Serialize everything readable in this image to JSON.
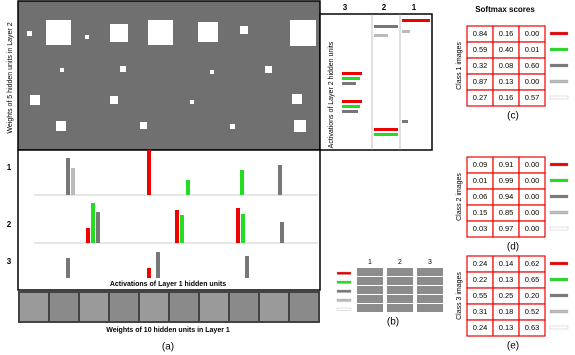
{
  "panel_a": {
    "layer2_weights_label": "Weights of 5 hidden units in Layer 2",
    "layer2_columns": [
      "3",
      "2",
      "1"
    ],
    "layer2_activations_label": "Activations of  Layer 2 hidden  units",
    "rows": [
      "1",
      "2",
      "3"
    ],
    "layer1_activations_label": "Activations of  Layer 1 hidden  units",
    "layer1_weights_label": "Weights of 10 hidden units in Layer 1",
    "caption": "(a)"
  },
  "panel_b": {
    "columns": [
      "1",
      "2",
      "3"
    ],
    "caption": "(b)"
  },
  "softmax_title": "Softmax  scores",
  "tables": [
    {
      "label": "Class  1 images",
      "caption": "(c)",
      "rows": [
        [
          "0.84",
          "0.16",
          "0.00"
        ],
        [
          "0.59",
          "0.40",
          "0.01"
        ],
        [
          "0.32",
          "0.08",
          "0.60"
        ],
        [
          "0.87",
          "0.13",
          "0.00"
        ],
        [
          "0.27",
          "0.16",
          "0.57"
        ]
      ]
    },
    {
      "label": "Class  2 images",
      "caption": "(d)",
      "rows": [
        [
          "0.09",
          "0.91",
          "0.00"
        ],
        [
          "0.01",
          "0.99",
          "0.00"
        ],
        [
          "0.06",
          "0.94",
          "0.00"
        ],
        [
          "0.15",
          "0.85",
          "0.00"
        ],
        [
          "0.03",
          "0.97",
          "0.00"
        ]
      ]
    },
    {
      "label": "Class  3  images",
      "caption": "(e)",
      "rows": [
        [
          "0.24",
          "0.14",
          "0.62"
        ],
        [
          "0.22",
          "0.13",
          "0.65"
        ],
        [
          "0.55",
          "0.25",
          "0.20"
        ],
        [
          "0.31",
          "0.18",
          "0.52"
        ],
        [
          "0.24",
          "0.13",
          "0.63"
        ]
      ]
    }
  ]
}
